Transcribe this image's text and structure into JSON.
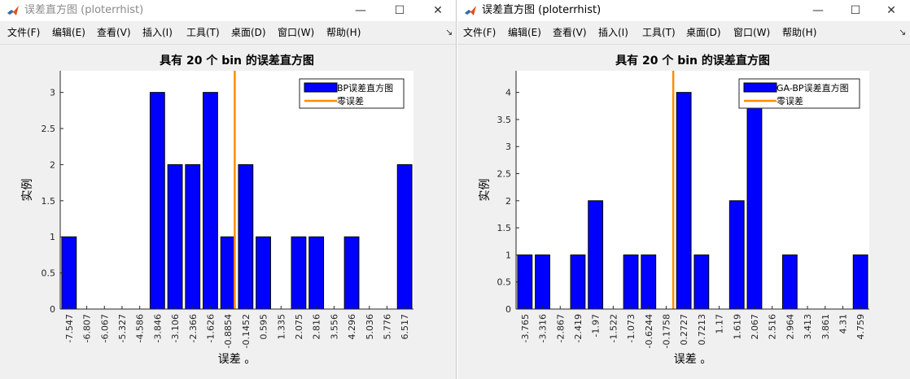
{
  "windows": [
    {
      "title": "误差直方图 (ploterrhist)",
      "menu": [
        "文件(F)",
        "编辑(E)",
        "查看(V)",
        "插入(I)",
        "工具(T)",
        "桌面(D)",
        "窗口(W)",
        "帮助(H)"
      ],
      "controls": [
        "—",
        "☐",
        "✕"
      ],
      "chart_data": {
        "type": "bar",
        "title": "具有 20 个 bin 的误差直方图",
        "xlabel": "误差 。",
        "ylabel": "实例",
        "categories": [
          "-7.547",
          "-6.807",
          "-6.067",
          "-5.327",
          "-4.586",
          "-3.846",
          "-3.106",
          "-2.366",
          "-1.626",
          "-0.8854",
          "-0.1452",
          "0.595",
          "1.335",
          "2.075",
          "2.816",
          "3.556",
          "4.296",
          "5.036",
          "5.776",
          "6.517"
        ],
        "series": [
          {
            "name": "BP误差直方图",
            "values": [
              1,
              0,
              0,
              0,
              0,
              3,
              2,
              2,
              3,
              1,
              2,
              1,
              0,
              1,
              1,
              0,
              1,
              0,
              0,
              2
            ],
            "color": "#0000ff"
          }
        ],
        "zero_line": {
          "name": "零误差",
          "at_category_index": 9.38,
          "color": "#ff8c00"
        },
        "yticks": [
          "0",
          "0.5",
          "1",
          "1.5",
          "2",
          "2.5",
          "3"
        ],
        "ylim": [
          0,
          3.3
        ],
        "legend": "top-right",
        "grid": false
      }
    },
    {
      "title": "误差直方图 (ploterrhist)",
      "menu": [
        "文件(F)",
        "编辑(E)",
        "查看(V)",
        "插入(I)",
        "工具(T)",
        "桌面(D)",
        "窗口(W)",
        "帮助(H)"
      ],
      "controls": [
        "—",
        "☐",
        "✕"
      ],
      "chart_data": {
        "type": "bar",
        "title": "具有 20 个 bin 的误差直方图",
        "xlabel": "误差 。",
        "ylabel": "实例",
        "categories": [
          "-3.765",
          "-3.316",
          "-2.867",
          "-2.419",
          "-1.97",
          "-1.522",
          "-1.073",
          "-0.6244",
          "-0.1758",
          "0.2727",
          "0.7213",
          "1.17",
          "1.619",
          "2.067",
          "2.516",
          "2.964",
          "3.413",
          "3.861",
          "4.31",
          "4.759"
        ],
        "series": [
          {
            "name": "GA-BP误差直方图",
            "values": [
              1,
              1,
              0,
              1,
              2,
              0,
              1,
              1,
              0,
              4,
              1,
              0,
              2,
              4,
              0,
              1,
              0,
              0,
              0,
              1
            ],
            "color": "#0000ff"
          }
        ],
        "zero_line": {
          "name": "零误差",
          "at_category_index": 8.4,
          "color": "#ff8c00"
        },
        "yticks": [
          "0",
          "0.5",
          "1",
          "1.5",
          "2",
          "2.5",
          "3",
          "3.5",
          "4"
        ],
        "ylim": [
          0,
          4.4
        ],
        "legend": "top-right",
        "grid": false
      }
    }
  ]
}
